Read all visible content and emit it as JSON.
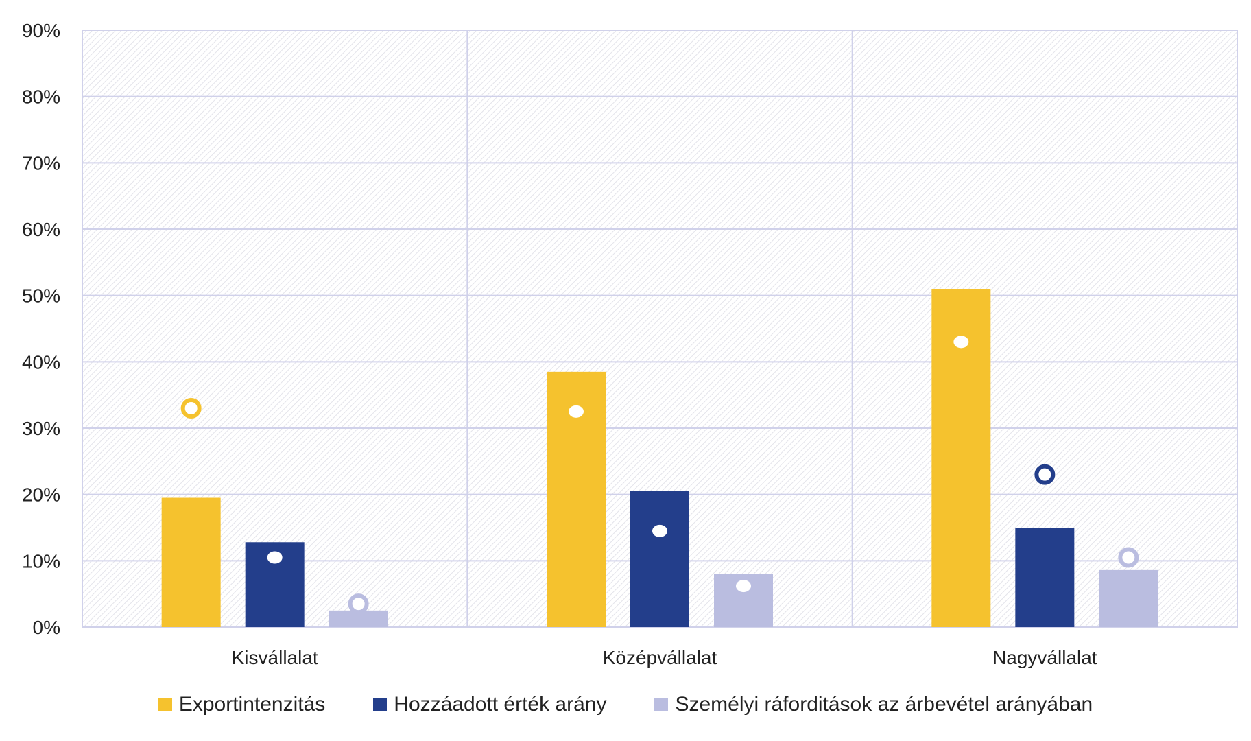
{
  "chart_data": {
    "type": "bar",
    "title": "",
    "xlabel": "",
    "ylabel": "",
    "ylim": [
      0,
      0.9
    ],
    "yticks": [
      0,
      0.1,
      0.2,
      0.3,
      0.4,
      0.5,
      0.6,
      0.7,
      0.8,
      0.9
    ],
    "ytick_labels": [
      "0%",
      "10%",
      "20%",
      "30%",
      "40%",
      "50%",
      "60%",
      "70%",
      "80%",
      "90%"
    ],
    "categories": [
      "Kisvállalat",
      "Középvállalat",
      "Nagyvállalat"
    ],
    "series": [
      {
        "name": "Exportintenzitás",
        "color": "#F5C22E",
        "values": [
          0.195,
          0.385,
          0.51
        ],
        "marker_values": [
          0.33,
          0.325,
          0.43
        ],
        "marker_style": [
          "hollow",
          "filled",
          "filled"
        ]
      },
      {
        "name": "Hozzáadott érték arány",
        "color": "#233E8B",
        "values": [
          0.128,
          0.205,
          0.15
        ],
        "marker_values": [
          0.105,
          0.145,
          0.23
        ],
        "marker_style": [
          "filled",
          "filled",
          "hollow"
        ]
      },
      {
        "name": "Személyi ráforditások az árbevétel arányában",
        "color": "#BABDE0",
        "values": [
          0.025,
          0.08,
          0.086
        ],
        "marker_values": [
          0.035,
          0.062,
          0.105
        ],
        "marker_style": [
          "hollow",
          "filled",
          "hollow"
        ]
      }
    ],
    "grid": true,
    "legend_position": "bottom"
  }
}
